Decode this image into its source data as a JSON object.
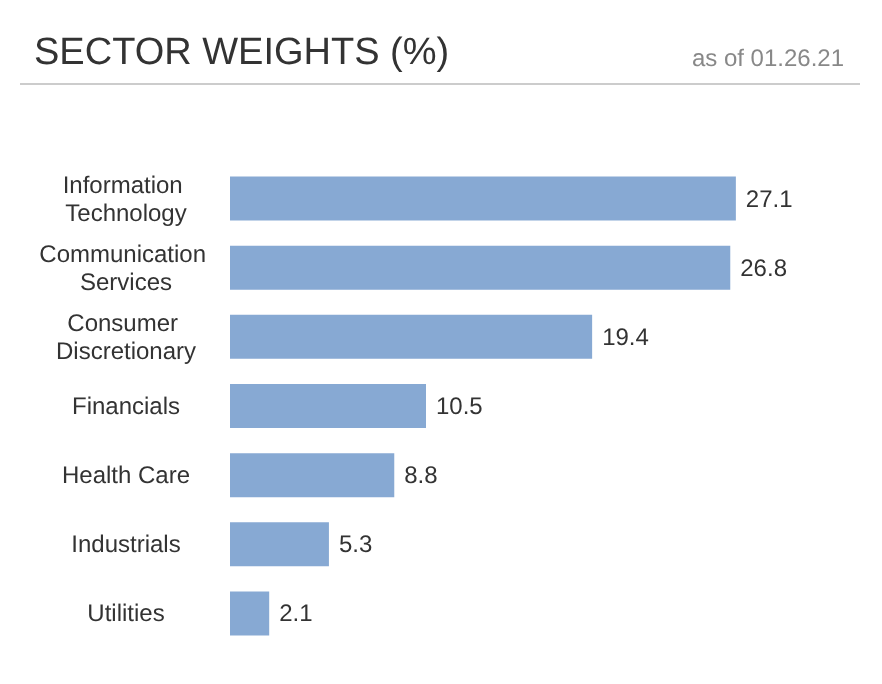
{
  "chart_data": {
    "type": "bar",
    "orientation": "horizontal",
    "title": "SECTOR WEIGHTS (%)",
    "subtitle": "as of 01.26.21",
    "categories": [
      "Information Technology",
      "Communication Services",
      "Consumer Discretionary",
      "Financials",
      "Health Care",
      "Industrials",
      "Utilities"
    ],
    "values": [
      27.1,
      26.8,
      19.4,
      10.5,
      8.8,
      5.3,
      2.1
    ],
    "color": "#87a9d3",
    "data_labels": true
  }
}
